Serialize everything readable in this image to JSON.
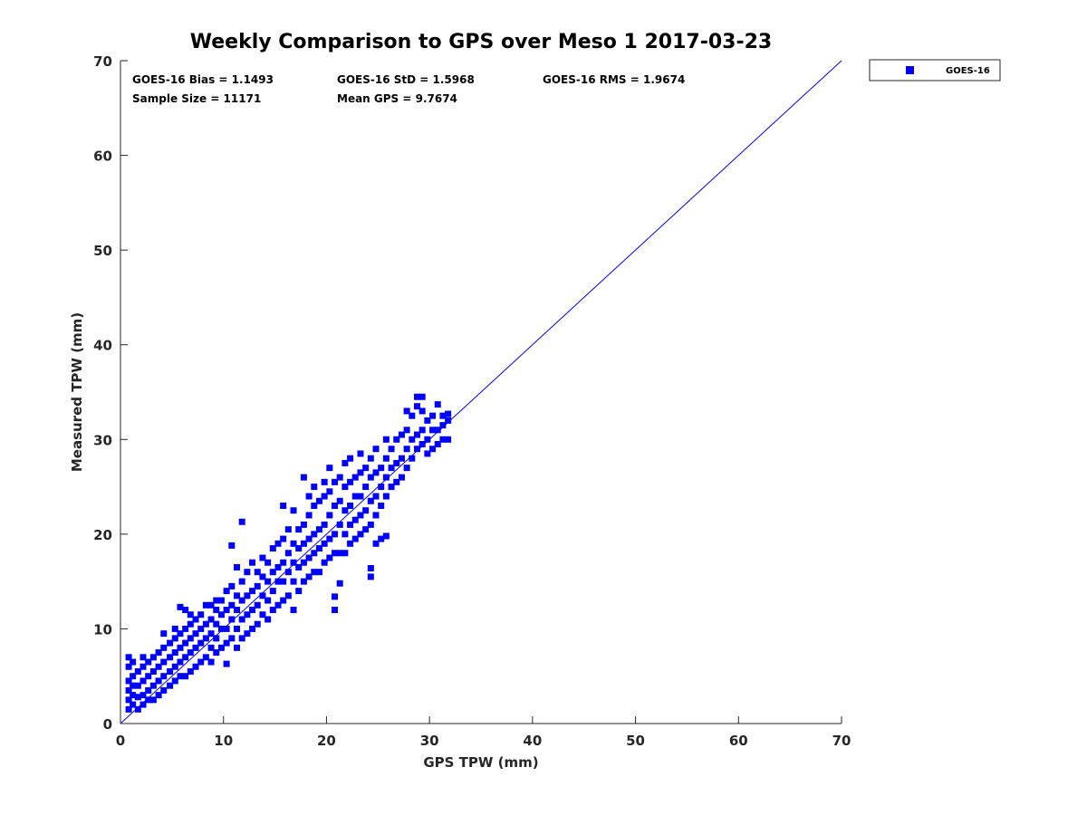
{
  "chart_data": {
    "type": "scatter",
    "title": "Weekly Comparison to GPS over Meso 1 2017-03-23",
    "xlabel": "GPS TPW (mm)",
    "ylabel": "Measured TPW (mm)",
    "xlim": [
      0,
      70
    ],
    "ylim": [
      0,
      70
    ],
    "xticks": [
      "0",
      "10",
      "20",
      "30",
      "40",
      "50",
      "60",
      "70"
    ],
    "yticks": [
      "0",
      "10",
      "20",
      "30",
      "40",
      "50",
      "60",
      "70"
    ],
    "grid": false,
    "legend": {
      "placement": "outside-top-right",
      "entries": [
        "GOES-16"
      ]
    },
    "stats": {
      "bias": "GOES-16 Bias = 1.1493",
      "std": "GOES-16 StD = 1.5968",
      "rms": "GOES-16 RMS = 1.9674",
      "sample_size": "Sample Size = 11171",
      "mean_gps": "Mean GPS = 9.7674"
    },
    "reference_line": {
      "name": "1:1 line",
      "from": [
        0,
        0
      ],
      "to": [
        70,
        70
      ],
      "color": "#0000ff"
    },
    "series": [
      {
        "name": "GOES-16",
        "color": "#0000ff",
        "marker": "square",
        "note": "representative subset of points grouped by x",
        "points": [
          {
            "x": 0.8,
            "y": [
              1.5,
              2.5,
              3.5,
              4.5,
              6,
              7
            ]
          },
          {
            "x": 1.2,
            "y": [
              2,
              3,
              4,
              5,
              6.5
            ]
          },
          {
            "x": 1.7,
            "y": [
              1.5,
              2.8,
              4,
              5.5
            ]
          },
          {
            "x": 2.2,
            "y": [
              2,
              3,
              4.5,
              6,
              7
            ]
          },
          {
            "x": 2.7,
            "y": [
              2.5,
              3.5,
              5,
              6.5
            ]
          },
          {
            "x": 3.2,
            "y": [
              2.5,
              4,
              5.5,
              7
            ]
          },
          {
            "x": 3.7,
            "y": [
              3,
              4.5,
              6,
              7.5
            ]
          },
          {
            "x": 4.2,
            "y": [
              3.5,
              5,
              6.5,
              8,
              9.5
            ]
          },
          {
            "x": 4.8,
            "y": [
              4,
              5.5,
              7,
              8.5
            ]
          },
          {
            "x": 5.3,
            "y": [
              4.5,
              6,
              7.5,
              9,
              10
            ]
          },
          {
            "x": 5.8,
            "y": [
              5,
              6.5,
              8,
              9.5,
              12.3
            ]
          },
          {
            "x": 6.3,
            "y": [
              5,
              7,
              8.5,
              10,
              12
            ]
          },
          {
            "x": 6.8,
            "y": [
              5.5,
              7.5,
              9,
              10.5,
              11.5
            ]
          },
          {
            "x": 7.3,
            "y": [
              6,
              8,
              9.5,
              11
            ]
          },
          {
            "x": 7.8,
            "y": [
              6.5,
              8.5,
              10,
              11.5
            ]
          },
          {
            "x": 8.3,
            "y": [
              7,
              9,
              10.5,
              12.5
            ]
          },
          {
            "x": 8.8,
            "y": [
              6.5,
              8,
              9.5,
              11,
              12.5
            ]
          },
          {
            "x": 9.3,
            "y": [
              7.5,
              9,
              10.5,
              12,
              13
            ]
          },
          {
            "x": 9.8,
            "y": [
              8,
              10,
              11.5,
              13
            ]
          },
          {
            "x": 10.3,
            "y": [
              6.3,
              8.5,
              10,
              12,
              14
            ]
          },
          {
            "x": 10.8,
            "y": [
              9,
              11,
              12.5,
              14.5,
              18.8
            ]
          },
          {
            "x": 11.3,
            "y": [
              8,
              10,
              12,
              13.5,
              16.5
            ]
          },
          {
            "x": 11.8,
            "y": [
              9,
              11,
              13,
              15,
              21.3
            ]
          },
          {
            "x": 12.3,
            "y": [
              9.5,
              11.5,
              13.5,
              16
            ]
          },
          {
            "x": 12.8,
            "y": [
              10,
              12,
              14,
              17
            ]
          },
          {
            "x": 13.3,
            "y": [
              10.5,
              12.5,
              14.5,
              16
            ]
          },
          {
            "x": 13.8,
            "y": [
              11.5,
              13.5,
              15.5,
              17.5
            ]
          },
          {
            "x": 14.3,
            "y": [
              11,
              13,
              15,
              17
            ]
          },
          {
            "x": 14.8,
            "y": [
              12,
              14,
              16,
              18.5
            ]
          },
          {
            "x": 15.3,
            "y": [
              12.5,
              15,
              16.5,
              19
            ]
          },
          {
            "x": 15.8,
            "y": [
              13,
              15,
              17,
              19.5,
              23
            ]
          },
          {
            "x": 16.3,
            "y": [
              13.5,
              16,
              18,
              20.5
            ]
          },
          {
            "x": 16.8,
            "y": [
              12,
              15,
              17,
              19,
              22.5
            ]
          },
          {
            "x": 17.3,
            "y": [
              14,
              16.5,
              18.5,
              20.5
            ]
          },
          {
            "x": 17.8,
            "y": [
              15,
              17,
              19,
              21,
              26
            ]
          },
          {
            "x": 18.3,
            "y": [
              15.5,
              17.5,
              19.5,
              22,
              24
            ]
          },
          {
            "x": 18.8,
            "y": [
              16,
              18,
              20,
              23,
              25
            ]
          },
          {
            "x": 19.3,
            "y": [
              16,
              18.5,
              20.5,
              23.5
            ]
          },
          {
            "x": 19.8,
            "y": [
              17,
              19,
              21,
              24,
              25.5
            ]
          },
          {
            "x": 20.3,
            "y": [
              17.5,
              19.5,
              22,
              24.5,
              27
            ]
          },
          {
            "x": 20.8,
            "y": [
              12,
              13.4,
              18,
              20,
              23,
              25.5
            ]
          },
          {
            "x": 21.3,
            "y": [
              14.8,
              18,
              21,
              23.5,
              26
            ]
          },
          {
            "x": 21.8,
            "y": [
              18,
              20,
              22.5,
              25,
              27.5
            ]
          },
          {
            "x": 22.3,
            "y": [
              19,
              21,
              23,
              25.5,
              28
            ]
          },
          {
            "x": 22.8,
            "y": [
              19.5,
              21.5,
              24,
              26
            ]
          },
          {
            "x": 23.3,
            "y": [
              20,
              22,
              24,
              26.5,
              28.5
            ]
          },
          {
            "x": 23.8,
            "y": [
              20.5,
              22.5,
              25,
              27
            ]
          },
          {
            "x": 24.3,
            "y": [
              15.5,
              16.4,
              21,
              23.5,
              26,
              28
            ]
          },
          {
            "x": 24.8,
            "y": [
              19,
              22,
              24,
              26.5,
              29
            ]
          },
          {
            "x": 25.3,
            "y": [
              19.5,
              23,
              25,
              27
            ]
          },
          {
            "x": 25.8,
            "y": [
              19.8,
              24,
              26,
              28,
              30
            ]
          },
          {
            "x": 26.3,
            "y": [
              25,
              27,
              29
            ]
          },
          {
            "x": 26.8,
            "y": [
              25.5,
              27.5,
              30
            ]
          },
          {
            "x": 27.3,
            "y": [
              26,
              28,
              30.5
            ]
          },
          {
            "x": 27.8,
            "y": [
              27,
              29,
              31,
              33
            ]
          },
          {
            "x": 28.3,
            "y": [
              28,
              30,
              32.5
            ]
          },
          {
            "x": 28.8,
            "y": [
              29,
              30.5,
              33.5,
              34.5
            ]
          },
          {
            "x": 29.3,
            "y": [
              29.5,
              31,
              33,
              34.5
            ]
          },
          {
            "x": 29.8,
            "y": [
              28.5,
              30,
              32
            ]
          },
          {
            "x": 30.3,
            "y": [
              29,
              31,
              32.5
            ]
          },
          {
            "x": 30.8,
            "y": [
              29.5,
              31,
              33.7
            ]
          },
          {
            "x": 31.3,
            "y": [
              30,
              31.5,
              32.5
            ]
          },
          {
            "x": 31.8,
            "y": [
              30,
              32,
              32.7
            ]
          }
        ]
      }
    ]
  }
}
